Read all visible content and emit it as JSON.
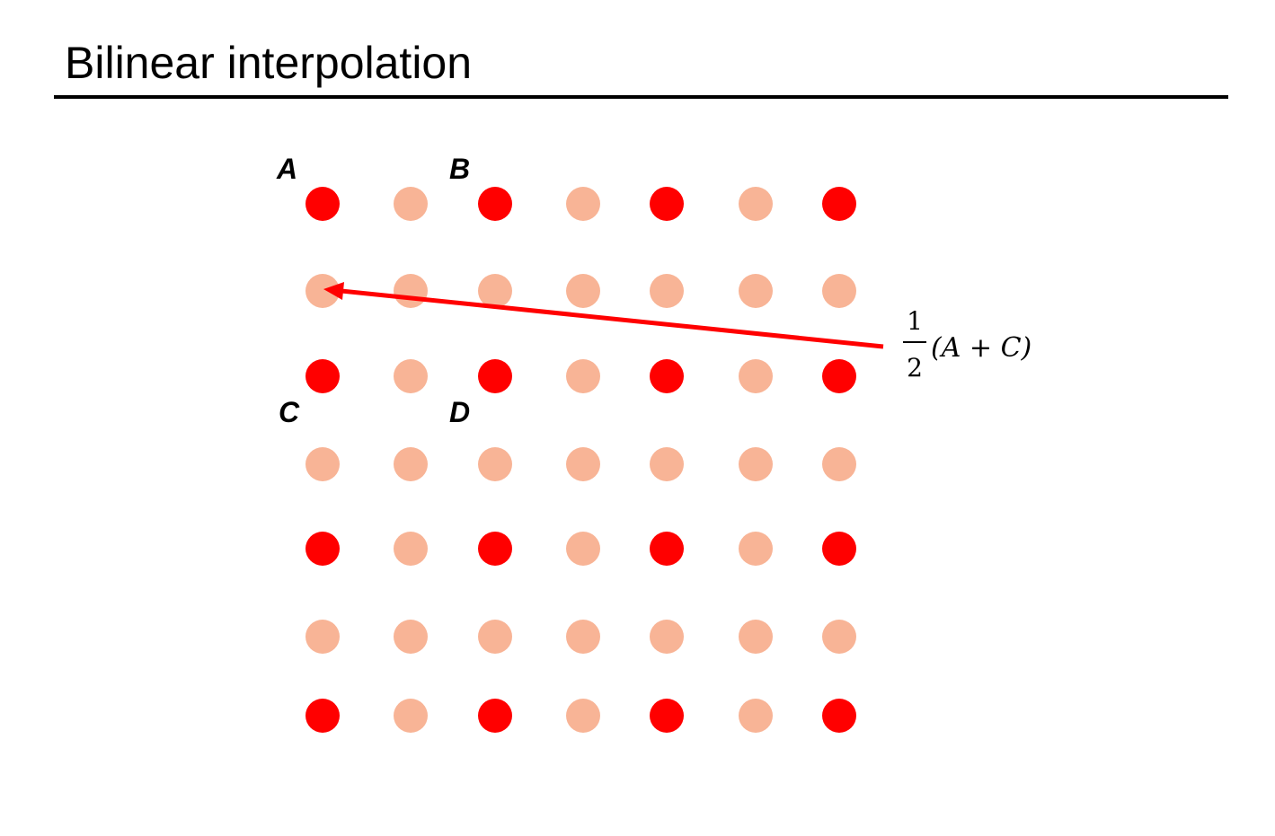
{
  "title": "Bilinear interpolation",
  "labels": {
    "a": "A",
    "b": "B",
    "c": "C",
    "d": "D"
  },
  "formula": {
    "numerator": "1",
    "denominator": "2",
    "expression": "(A + C)"
  },
  "colors": {
    "original_sample": "#ff0000",
    "interpolated_sample": "#f8b496",
    "arrow": "#ff0000",
    "text": "#000000"
  },
  "grid": {
    "rows": 7,
    "columns": 7,
    "original_sample_rule": "even row and even column"
  }
}
